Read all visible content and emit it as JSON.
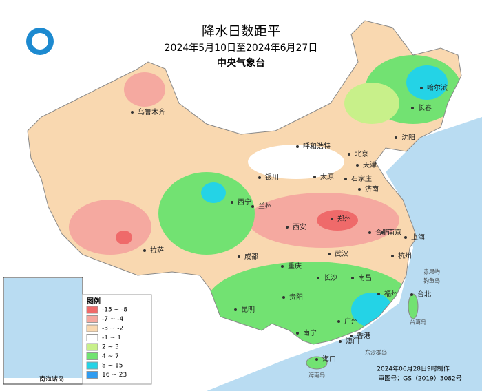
{
  "header": {
    "title": "降水日数距平",
    "period": "2024年5月10日至2024年6月27日",
    "agency": "中央气象台"
  },
  "legend": {
    "title": "图例",
    "items": [
      {
        "label": "-15 ~ -8",
        "color": "#ef6a6a"
      },
      {
        "label": "-7 ~ -4",
        "color": "#f5a9a0"
      },
      {
        "label": "-3 ~ -2",
        "color": "#f9d8b0"
      },
      {
        "label": "-1 ~ 1",
        "color": "#ffffff"
      },
      {
        "label": "2 ~ 3",
        "color": "#c8f08a"
      },
      {
        "label": "4 ~ 7",
        "color": "#72e272"
      },
      {
        "label": "8 ~ 15",
        "color": "#24d3e6"
      },
      {
        "label": "16 ~ 23",
        "color": "#2f9cf0"
      }
    ]
  },
  "cities": [
    "乌鲁木齐",
    "哈尔滨",
    "长春",
    "沈阳",
    "呼和浩特",
    "北京",
    "天津",
    "银川",
    "太原",
    "石家庄",
    "济南",
    "西宁",
    "兰州",
    "郑州",
    "西安",
    "合肥",
    "南京",
    "上海",
    "成都",
    "武汉",
    "杭州",
    "重庆",
    "长沙",
    "南昌",
    "福州",
    "台北",
    "贵阳",
    "昆明",
    "南宁",
    "广州",
    "香港",
    "澳门",
    "海口",
    "拉萨"
  ],
  "places": [
    "赤尾屿",
    "钓鱼岛",
    "台湾岛",
    "东沙群岛",
    "海南岛"
  ],
  "inset": {
    "label": "南海诸岛"
  },
  "footer": {
    "made": "2024年06月28日9时制作",
    "approval": "审图号：GS（2019）3082号"
  }
}
